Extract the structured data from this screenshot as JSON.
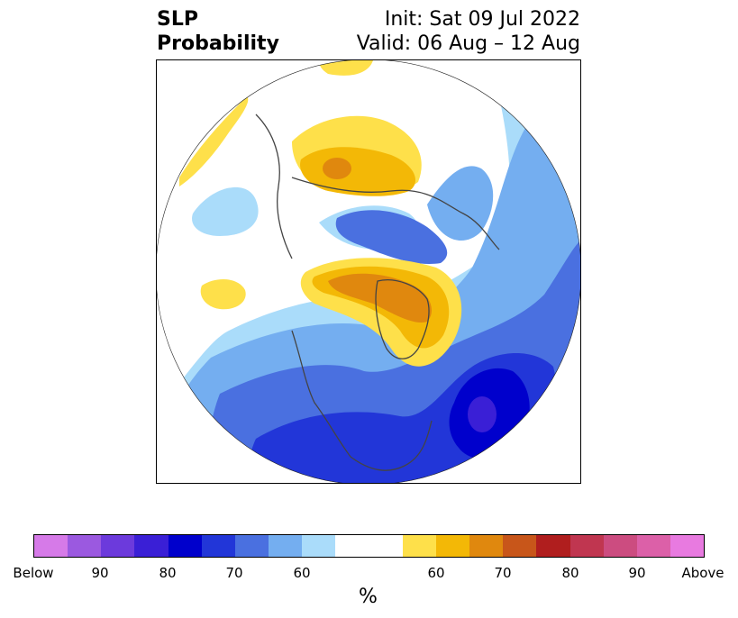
{
  "title": {
    "left_lines": [
      "SLP",
      "Probability"
    ],
    "right_lines": [
      "Init: Sat 09 Jul 2022",
      "Valid: 06 Aug – 12 Aug"
    ]
  },
  "colorbar": {
    "unit": "%",
    "colors": [
      "#d67ae8",
      "#9b59e0",
      "#6c3adc",
      "#3a1fd6",
      "#0000cc",
      "#2236d8",
      "#4a70e0",
      "#74aef0",
      "#aadcfa",
      "#ffffff",
      "#ffffff",
      "#fee04a",
      "#f3b806",
      "#e0880e",
      "#c8561a",
      "#b01e1e",
      "#c03650",
      "#cc4c80",
      "#dc60a8",
      "#e87ae0"
    ],
    "tick_labels": [
      "Below",
      "90",
      "80",
      "70",
      "60",
      "60",
      "70",
      "80",
      "90",
      "Above"
    ]
  },
  "map": {
    "category_colors": {
      "below_60": "#aadcfa",
      "below_70": "#74aef0",
      "below_75": "#4a70e0",
      "below_80": "#2236d8",
      "below_85": "#0000cc",
      "below_90": "#3a1fd6",
      "above_60": "#fee04a",
      "above_70": "#f3b806",
      "above_80": "#e0880e",
      "coastline": "#444444"
    }
  }
}
